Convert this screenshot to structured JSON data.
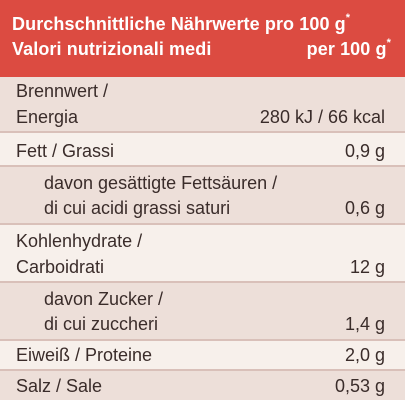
{
  "header": {
    "line1_left": "Durchschnittliche Nährwerte pro 100 g",
    "line1_mark": "*",
    "line2_left": "Valori nutrizionali medi",
    "line2_right": "per 100 g",
    "line2_mark": "*",
    "background_color": "#dc4b41",
    "text_color": "#ffffff"
  },
  "rows": {
    "energy": {
      "label_de": "Brennwert /",
      "label_it": "Energia",
      "value": "280 kJ / 66 kcal"
    },
    "fat": {
      "label": "Fett / Grassi",
      "value": "0,9 g"
    },
    "saturated_fat": {
      "label_de": "davon gesättigte Fettsäuren /",
      "label_it": "di cui acidi grassi saturi",
      "value": "0,6 g"
    },
    "carbohydrates": {
      "label_de": "Kohlenhydrate /",
      "label_it": "Carboidrati",
      "value": "12 g"
    },
    "sugars": {
      "label_de": "davon Zucker /",
      "label_it": "di cui zuccheri",
      "value": "1,4 g"
    },
    "protein": {
      "label": "Eiweiß / Proteine",
      "value": "2,0 g"
    },
    "salt": {
      "label": "Salz / Sale",
      "value": "0,53 g"
    }
  },
  "colors": {
    "row_alt": "#eddfd9",
    "row_plain": "#f7f0eb",
    "text": "#3a2c2a",
    "divider": "#d9c0b9"
  }
}
